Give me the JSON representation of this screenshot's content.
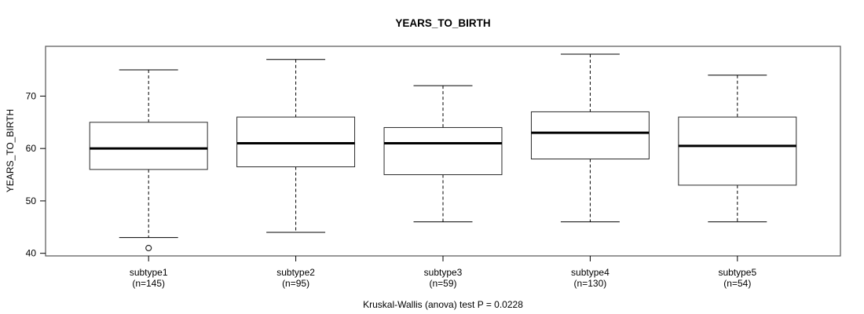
{
  "chart_data": {
    "type": "boxplot",
    "title": "YEARS_TO_BIRTH",
    "ylabel": "YEARS_TO_BIRTH",
    "caption": "Kruskal-Wallis (anova) test P = 0.0228",
    "ylim": [
      39.5,
      79.5
    ],
    "yticks": [
      40,
      50,
      60,
      70
    ],
    "grid": false,
    "legend": "none",
    "categories": [
      "subtype1",
      "subtype2",
      "subtype3",
      "subtype4",
      "subtype5"
    ],
    "groups": [
      {
        "label": "subtype1",
        "n": 145,
        "n_label": "(n=145)",
        "whisker_low": 43,
        "q1": 56,
        "median": 60,
        "q3": 65,
        "whisker_high": 75,
        "outliers": [
          41
        ]
      },
      {
        "label": "subtype2",
        "n": 95,
        "n_label": "(n=95)",
        "whisker_low": 44,
        "q1": 56.5,
        "median": 61,
        "q3": 66,
        "whisker_high": 77,
        "outliers": []
      },
      {
        "label": "subtype3",
        "n": 59,
        "n_label": "(n=59)",
        "whisker_low": 46,
        "q1": 55,
        "median": 61,
        "q3": 64,
        "whisker_high": 72,
        "outliers": []
      },
      {
        "label": "subtype4",
        "n": 130,
        "n_label": "(n=130)",
        "whisker_low": 46,
        "q1": 58,
        "median": 63,
        "q3": 67,
        "whisker_high": 78,
        "outliers": []
      },
      {
        "label": "subtype5",
        "n": 54,
        "n_label": "(n=54)",
        "whisker_low": 46,
        "q1": 53,
        "median": 60.5,
        "q3": 66,
        "whisker_high": 74,
        "outliers": []
      }
    ],
    "colors": {
      "frame": "#606060",
      "box_border": "#2a2a2a",
      "box_fill": "#ffffff",
      "median": "#000000",
      "whisker": "#000000",
      "outlier": "#2a2a2a",
      "text": "#000000"
    }
  }
}
